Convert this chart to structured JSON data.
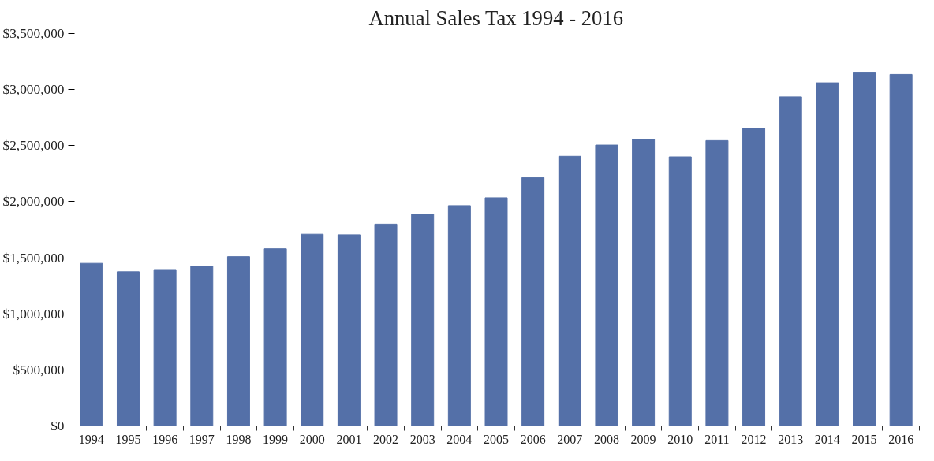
{
  "chart_data": {
    "type": "bar",
    "title": "Annual Sales Tax 1994 - 2016",
    "categories": [
      "1994",
      "1995",
      "1996",
      "1997",
      "1998",
      "1999",
      "2000",
      "2001",
      "2002",
      "2003",
      "2004",
      "2005",
      "2006",
      "2007",
      "2008",
      "2009",
      "2010",
      "2011",
      "2012",
      "2013",
      "2014",
      "2015",
      "2016"
    ],
    "values": [
      1450000,
      1375000,
      1395000,
      1425000,
      1510000,
      1580000,
      1710000,
      1705000,
      1800000,
      1890000,
      1965000,
      2035000,
      2215000,
      2405000,
      2505000,
      2555000,
      2400000,
      2545000,
      2655000,
      2935000,
      3060000,
      3150000,
      3135000
    ],
    "color": "#5470a8",
    "ylim": [
      0,
      3500000
    ],
    "yticks": [
      {
        "value": 0,
        "label": "$0"
      },
      {
        "value": 500000,
        "label": "$500,000"
      },
      {
        "value": 1000000,
        "label": "$1,000,000"
      },
      {
        "value": 1500000,
        "label": "$1,500,000"
      },
      {
        "value": 2000000,
        "label": "$2,000,000"
      },
      {
        "value": 2500000,
        "label": "$2,500,000"
      },
      {
        "value": 3000000,
        "label": "$3,000,000"
      },
      {
        "value": 3500000,
        "label": "$3,500,000"
      }
    ],
    "grid": false
  }
}
